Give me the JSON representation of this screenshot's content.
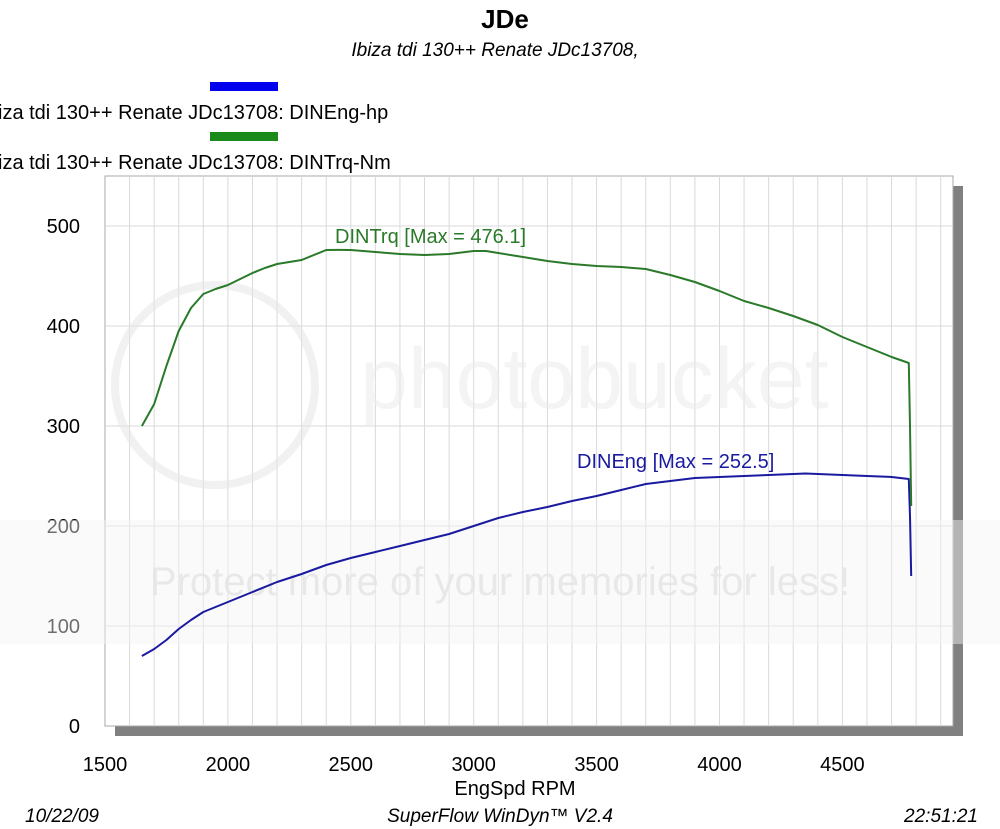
{
  "chart_data": {
    "type": "line",
    "title": "JDe",
    "subtitle": "Ibiza tdi 130++  Renate   JDc13708,",
    "xlabel": "EngSpd  RPM",
    "ylabel": "",
    "xlim": [
      1500,
      4950
    ],
    "ylim": [
      0,
      550
    ],
    "x_ticks": [
      1500,
      2000,
      2500,
      3000,
      3500,
      4000,
      4500
    ],
    "y_ticks": [
      0,
      100,
      200,
      300,
      400,
      500
    ],
    "grid": true,
    "legend_position": "top-left",
    "series": [
      {
        "name": "iza tdi 130++  Renate   JDc13708: DINEng-hp",
        "color": "#1a1aa0",
        "legend_color": "#0000ee",
        "annotation": "DINEng [Max = 252.5]",
        "x": [
          1650,
          1700,
          1750,
          1800,
          1850,
          1900,
          2000,
          2100,
          2200,
          2300,
          2400,
          2500,
          2600,
          2700,
          2800,
          2900,
          3000,
          3100,
          3200,
          3300,
          3400,
          3500,
          3600,
          3700,
          3800,
          3900,
          4000,
          4100,
          4200,
          4300,
          4350,
          4400,
          4500,
          4600,
          4700,
          4770,
          4775,
          4780
        ],
        "y": [
          70,
          77,
          86,
          97,
          106,
          114,
          124,
          134,
          144,
          152,
          161,
          168,
          174,
          180,
          186,
          192,
          200,
          208,
          214,
          219,
          225,
          230,
          236,
          242,
          245,
          248,
          249,
          250,
          251,
          252,
          252.5,
          252,
          251,
          250,
          249,
          247,
          210,
          150
        ]
      },
      {
        "name": "iza tdi 130++  Renate   JDc13708: DINTrq-Nm",
        "color": "#2a7a2a",
        "legend_color": "#1a8a1a",
        "annotation": "DINTrq [Max = 476.1]",
        "x": [
          1650,
          1700,
          1750,
          1800,
          1850,
          1900,
          1950,
          2000,
          2050,
          2100,
          2150,
          2200,
          2300,
          2400,
          2450,
          2500,
          2600,
          2700,
          2800,
          2900,
          3000,
          3050,
          3100,
          3200,
          3300,
          3400,
          3500,
          3600,
          3700,
          3800,
          3900,
          4000,
          4100,
          4200,
          4300,
          4400,
          4500,
          4600,
          4700,
          4770,
          4775,
          4780
        ],
        "y": [
          300,
          322,
          360,
          395,
          418,
          432,
          437,
          441,
          447,
          453,
          458,
          462,
          466,
          476,
          476.1,
          476,
          474,
          472,
          471,
          472,
          475,
          475,
          473,
          469,
          465,
          462,
          460,
          459,
          457,
          451,
          444,
          435,
          425,
          418,
          410,
          401,
          389,
          379,
          369,
          363,
          300,
          220
        ]
      }
    ]
  },
  "footer": {
    "date": "10/22/09",
    "software": "SuperFlow WinDyn™ V2.4",
    "time": "22:51:21"
  },
  "watermark": {
    "brand": "photobucket",
    "tagline": "Protect more of your memories for less!"
  }
}
